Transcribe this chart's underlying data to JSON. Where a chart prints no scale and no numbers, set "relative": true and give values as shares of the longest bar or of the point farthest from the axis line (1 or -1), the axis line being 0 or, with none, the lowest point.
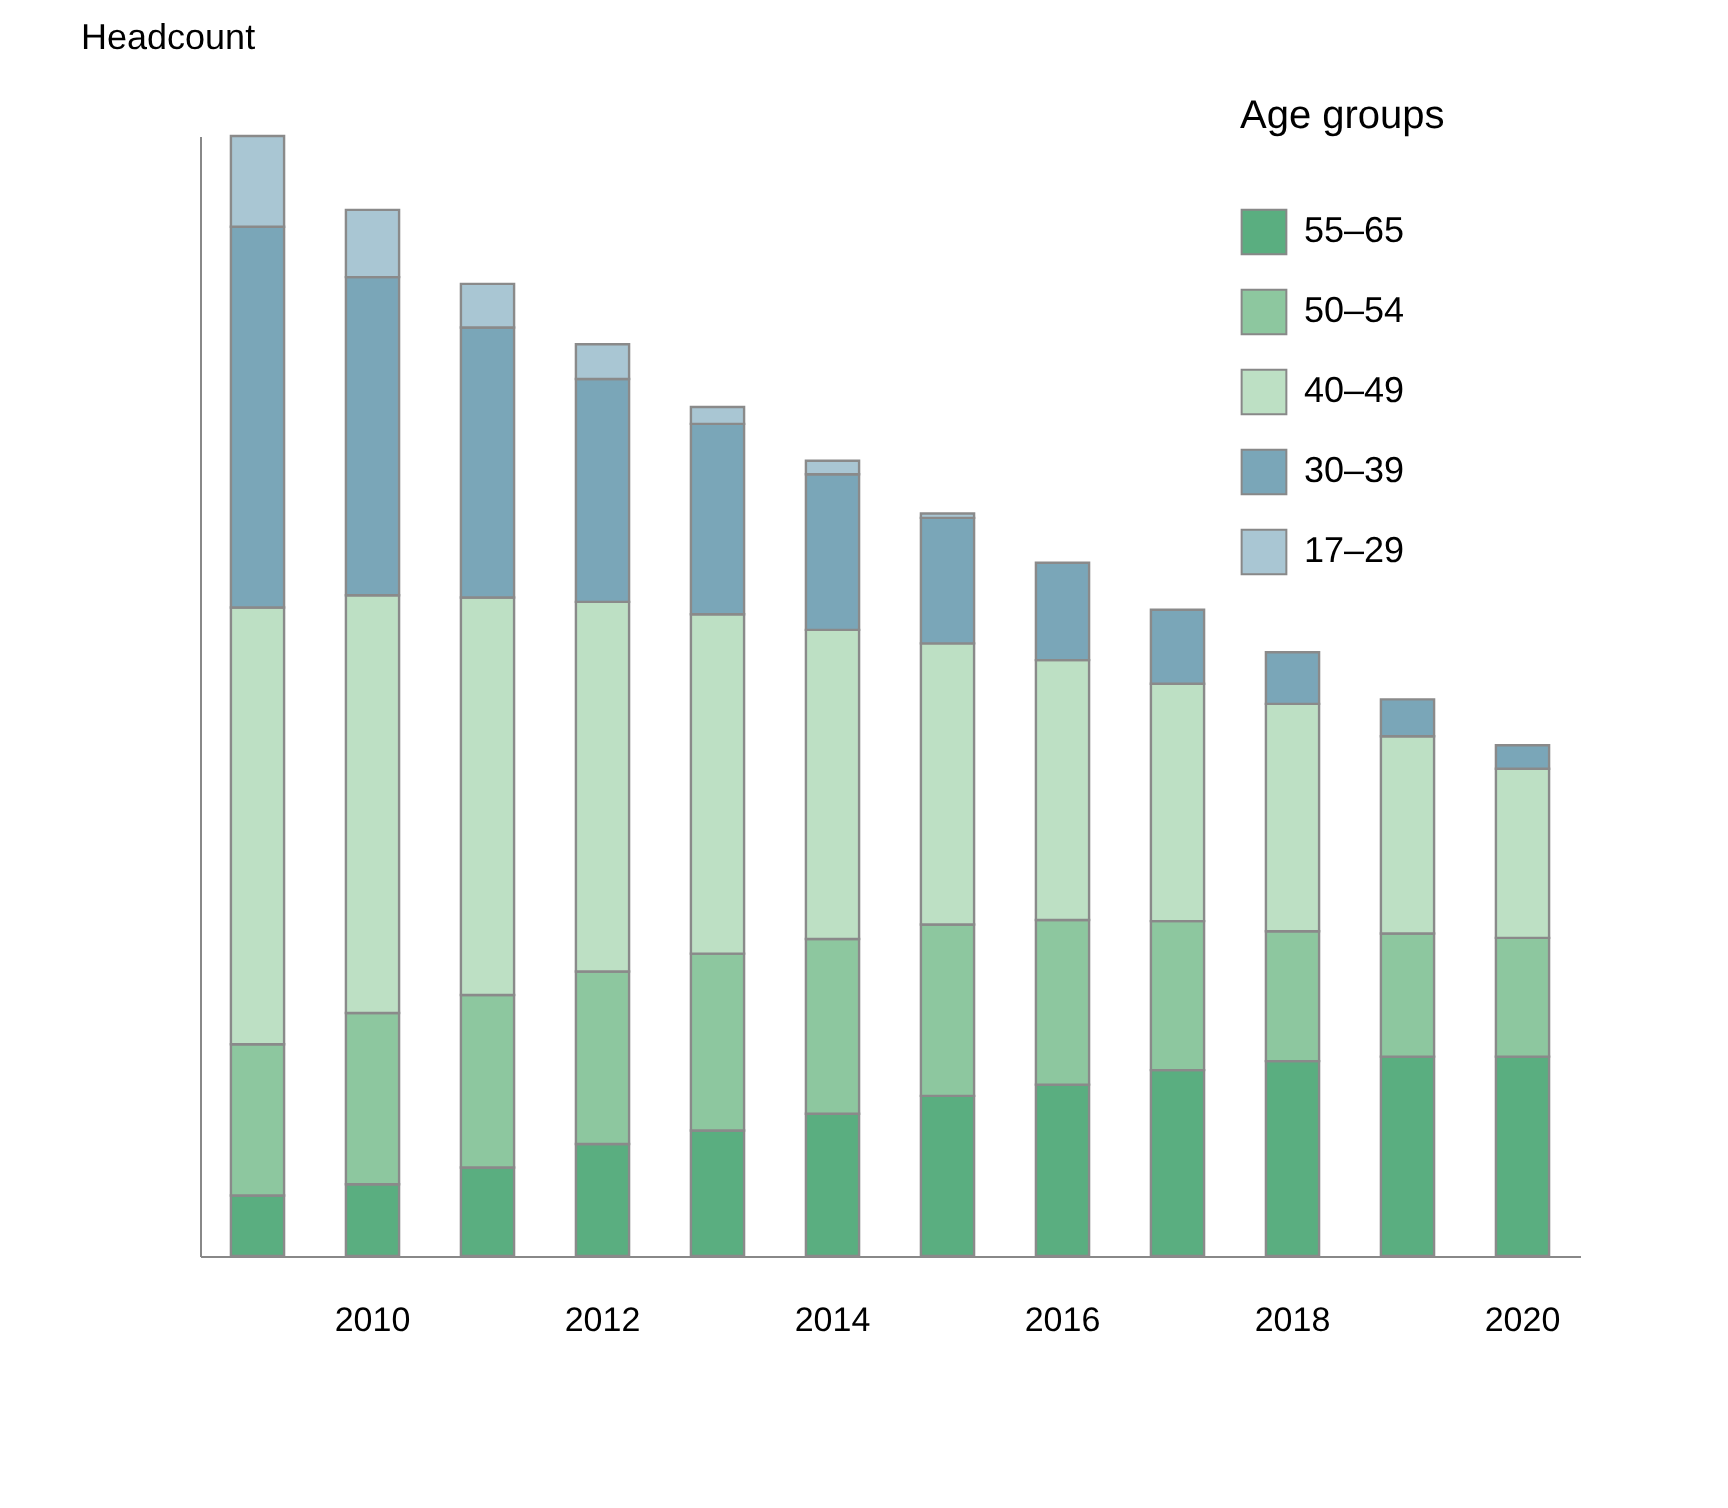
{
  "chart_data": {
    "type": "bar",
    "stacked": true,
    "relative": true,
    "ylabel": "Headcount",
    "legend_title": "Age groups",
    "legend": "top right",
    "categories": [
      null,
      "2010",
      null,
      "2012",
      null,
      "2014",
      null,
      "2016",
      null,
      "2018",
      null,
      "2020"
    ],
    "series": [
      {
        "name": "55–65",
        "color": "#5aae80",
        "values": [
          0.054,
          0.064,
          0.079,
          0.1,
          0.112,
          0.127,
          0.143,
          0.153,
          0.166,
          0.174,
          0.178,
          0.178
        ]
      },
      {
        "name": "50–54",
        "color": "#8dc79f",
        "values": [
          0.135,
          0.153,
          0.154,
          0.154,
          0.158,
          0.156,
          0.153,
          0.147,
          0.133,
          0.116,
          0.11,
          0.106
        ]
      },
      {
        "name": "40–49",
        "color": "#bde0c4",
        "values": [
          0.39,
          0.373,
          0.355,
          0.33,
          0.303,
          0.276,
          0.251,
          0.232,
          0.212,
          0.203,
          0.176,
          0.151
        ]
      },
      {
        "name": "30–39",
        "color": "#7aa6b8",
        "values": [
          0.34,
          0.284,
          0.241,
          0.199,
          0.17,
          0.139,
          0.112,
          0.087,
          0.066,
          0.046,
          0.033,
          0.021
        ]
      },
      {
        "name": "17–29",
        "color": "#a9c6d3",
        "values": [
          0.081,
          0.06,
          0.039,
          0.031,
          0.015,
          0.012,
          0.004,
          null,
          null,
          null,
          null,
          null
        ]
      }
    ]
  }
}
